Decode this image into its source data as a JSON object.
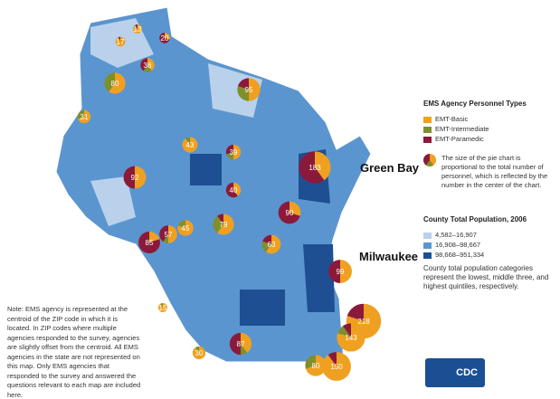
{
  "legend": {
    "title": "EMS Agency Personnel Types",
    "types": [
      {
        "label": "EMT-Basic",
        "color": "#f0a020"
      },
      {
        "label": "EMT-Intermediate",
        "color": "#7f8f2a"
      },
      {
        "label": "EMT-Paramedic",
        "color": "#8b1a3a"
      }
    ],
    "pie_note": "The size of the pie chart is proportional to the total number of personnel, which is reflected by the number in the center of the chart.",
    "pop_title": "County Total Population, 2006",
    "pop_classes": [
      {
        "label": "4,582–16,907",
        "color": "#b9d1ea"
      },
      {
        "label": "16,908–98,667",
        "color": "#5b95cf"
      },
      {
        "label": "98,668–951,334",
        "color": "#1f4f93"
      }
    ],
    "pop_note": "County total population categories represent the lowest, middle three, and highest quintiles, respectively."
  },
  "cities": {
    "green_bay": "Green Bay",
    "milwaukee": "Milwaukee"
  },
  "note": "Note: EMS agency is represented at the centroid of the ZIP code in which it is located. In ZIP codes where multiple agencies responded to the survey, agencies are slightly offset from the centroid. All EMS agencies in the state are not represented on this map. Only EMS agencies that responded to the survey and answered the questions relevant to each map are included here.",
  "logo": "CDC",
  "agencies": [
    {
      "n": "13",
      "b": 0.8,
      "i": 0.1,
      "p": 0.1
    },
    {
      "n": "17",
      "b": 0.9,
      "i": 0.05,
      "p": 0.05
    },
    {
      "n": "20",
      "b": 0.3,
      "i": 0,
      "p": 0.7
    },
    {
      "n": "36",
      "b": 0.4,
      "i": 0.2,
      "p": 0.4
    },
    {
      "n": "80",
      "b": 0.6,
      "i": 0.4,
      "p": 0
    },
    {
      "n": "95",
      "b": 0.5,
      "i": 0.3,
      "p": 0.2
    },
    {
      "n": "31",
      "b": 0.7,
      "i": 0.3,
      "p": 0
    },
    {
      "n": "43",
      "b": 0.9,
      "i": 0.1,
      "p": 0
    },
    {
      "n": "92",
      "b": 0.5,
      "i": 0,
      "p": 0.5
    },
    {
      "n": "39",
      "b": 0.5,
      "i": 0.2,
      "p": 0.3
    },
    {
      "n": "183",
      "b": 0.4,
      "i": 0,
      "p": 0.6
    },
    {
      "n": "90",
      "b": 0.3,
      "i": 0,
      "p": 0.7
    },
    {
      "n": "40",
      "b": 0.4,
      "i": 0,
      "p": 0.6
    },
    {
      "n": "57",
      "b": 0.5,
      "i": 0.1,
      "p": 0.4
    },
    {
      "n": "85",
      "b": 0.2,
      "i": 0,
      "p": 0.8
    },
    {
      "n": "45",
      "b": 0.8,
      "i": 0.2,
      "p": 0
    },
    {
      "n": "79",
      "b": 0.6,
      "i": 0.3,
      "p": 0.1
    },
    {
      "n": "63",
      "b": 0.6,
      "i": 0.2,
      "p": 0.2
    },
    {
      "n": "99",
      "b": 0.5,
      "i": 0,
      "p": 0.5
    },
    {
      "n": "218",
      "b": 0.8,
      "i": 0,
      "p": 0.2
    },
    {
      "n": "143",
      "b": 0.8,
      "i": 0.1,
      "p": 0.1
    },
    {
      "n": "150",
      "b": 0.9,
      "i": 0,
      "p": 0.1
    },
    {
      "n": "80",
      "b": 0.7,
      "i": 0.3,
      "p": 0
    },
    {
      "n": "87",
      "b": 0.4,
      "i": 0.1,
      "p": 0.5
    },
    {
      "n": "15",
      "b": 0.9,
      "i": 0.1,
      "p": 0
    },
    {
      "n": "30",
      "b": 0.9,
      "i": 0.1,
      "p": 0
    }
  ]
}
